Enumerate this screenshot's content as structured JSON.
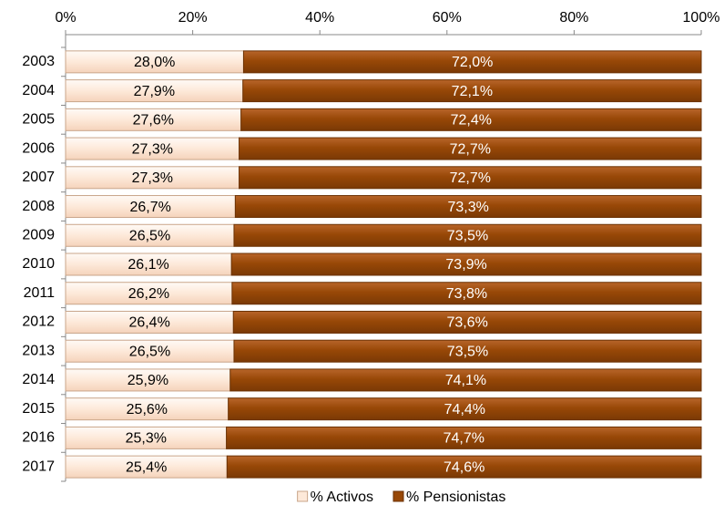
{
  "chart_data": {
    "type": "bar",
    "orientation": "horizontal",
    "stacked": true,
    "categories": [
      "2003",
      "2004",
      "2005",
      "2006",
      "2007",
      "2008",
      "2009",
      "2010",
      "2011",
      "2012",
      "2013",
      "2014",
      "2015",
      "2016",
      "2017"
    ],
    "series": [
      {
        "name": "% Activos",
        "color": "#fde9d9",
        "values": [
          28.0,
          27.9,
          27.6,
          27.3,
          27.3,
          26.7,
          26.5,
          26.1,
          26.2,
          26.4,
          26.5,
          25.9,
          25.6,
          25.3,
          25.4
        ],
        "value_labels": [
          "28,0%",
          "27,9%",
          "27,6%",
          "27,3%",
          "27,3%",
          "26,7%",
          "26,5%",
          "26,1%",
          "26,2%",
          "26,4%",
          "26,5%",
          "25,9%",
          "25,6%",
          "25,3%",
          "25,4%"
        ]
      },
      {
        "name": "% Pensionistas",
        "color": "#984807",
        "values": [
          72.0,
          72.1,
          72.4,
          72.7,
          72.7,
          73.3,
          73.5,
          73.9,
          73.8,
          73.6,
          73.5,
          74.1,
          74.4,
          74.7,
          74.6
        ],
        "value_labels": [
          "72,0%",
          "72,1%",
          "72,4%",
          "72,7%",
          "72,7%",
          "73,3%",
          "73,5%",
          "73,9%",
          "73,8%",
          "73,6%",
          "73,5%",
          "74,1%",
          "74,4%",
          "74,7%",
          "74,6%"
        ]
      }
    ],
    "xlim": [
      0,
      100
    ],
    "xticks": [
      {
        "value": 0,
        "label": "0%"
      },
      {
        "value": 20,
        "label": "20%"
      },
      {
        "value": 40,
        "label": "40%"
      },
      {
        "value": 60,
        "label": "60%"
      },
      {
        "value": 80,
        "label": "80%"
      },
      {
        "value": 100,
        "label": "100%"
      }
    ],
    "legend": "bottom"
  }
}
